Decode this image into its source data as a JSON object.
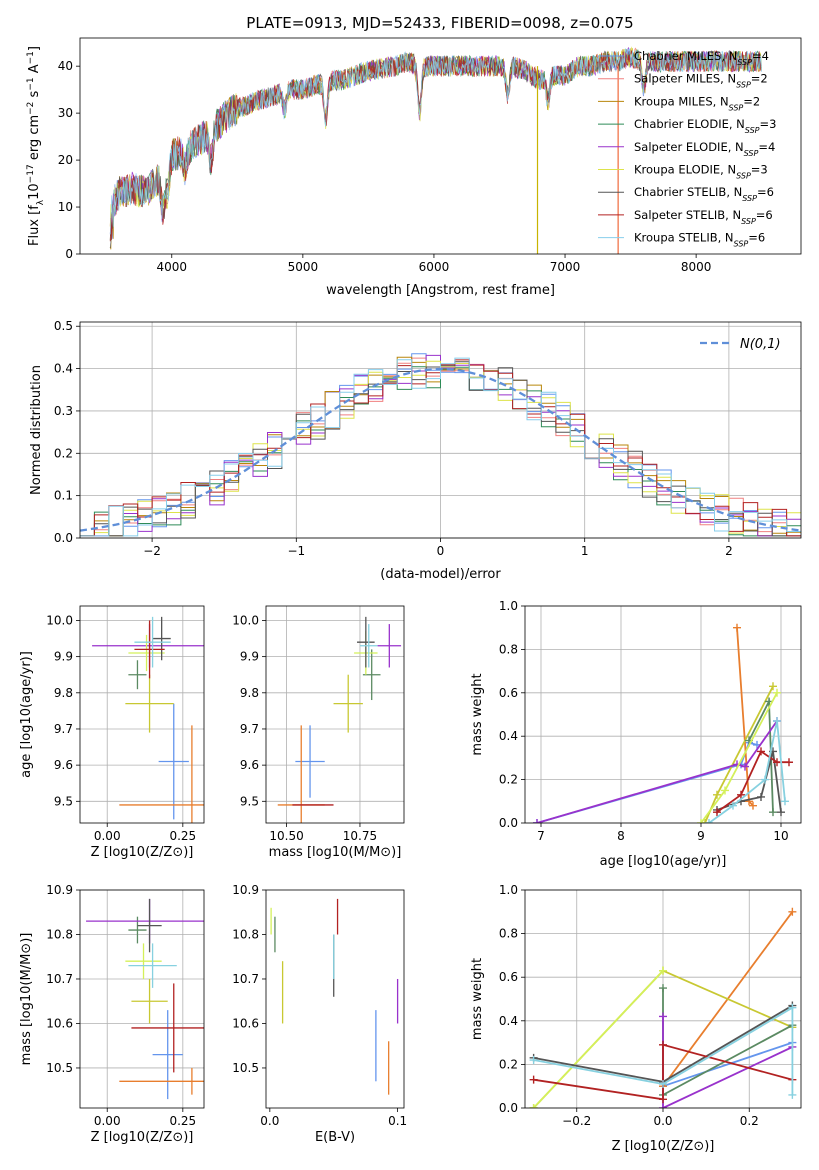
{
  "figure_title": "PLATE=0913, MJD=52433, FIBERID=0098, z=0.075",
  "colors": {
    "series": [
      "#6495ed",
      "#f08080",
      "#b8860b",
      "#2e8b57",
      "#9932cc",
      "#dde34a",
      "#555555",
      "#b22222",
      "#87ceeb"
    ],
    "pos_series": [
      "#6495ed",
      "#e87e2e",
      "#c8c832",
      "#5b8a62",
      "#9932cc",
      "#d4f05a",
      "#555555",
      "#b22222",
      "#87d1e0"
    ],
    "normal_curve": "#5f8fd8",
    "grid": "#b0b0b0"
  },
  "chart_data": [
    {
      "type": "line",
      "panel": "spectrum",
      "title": "PLATE=0913, MJD=52433, FIBERID=0098, z=0.075",
      "xlabel": "wavelength [Angstrom, rest frame]",
      "ylabel": "Flux [f_λ10^-17 erg cm^-2 s^-1 A^-1]",
      "xlim": [
        3300,
        8800
      ],
      "ylim": [
        0,
        46
      ],
      "xticks": [
        4000,
        5000,
        6000,
        7000,
        8000
      ],
      "yticks": [
        0,
        10,
        20,
        30,
        40
      ],
      "grid": false,
      "legend_position": "right",
      "series": [
        {
          "name": "Chabrier MILES, N_SSP=4"
        },
        {
          "name": "Salpeter MILES, N_SSP=2"
        },
        {
          "name": "Kroupa MILES, N_SSP=2"
        },
        {
          "name": "Chabrier ELODIE, N_SSP=3"
        },
        {
          "name": "Salpeter ELODIE, N_SSP=4"
        },
        {
          "name": "Kroupa ELODIE, N_SSP=3"
        },
        {
          "name": "Chabrier STELIB, N_SSP=6"
        },
        {
          "name": "Salpeter STELIB, N_SSP=6"
        },
        {
          "name": "Kroupa STELIB, N_SSP=6"
        }
      ],
      "continuum": [
        [
          3530,
          10
        ],
        [
          3600,
          13
        ],
        [
          3700,
          14
        ],
        [
          3800,
          13
        ],
        [
          3900,
          16
        ],
        [
          4000,
          21
        ],
        [
          4100,
          22
        ],
        [
          4200,
          24
        ],
        [
          4300,
          26
        ],
        [
          4400,
          29
        ],
        [
          4500,
          31
        ],
        [
          4600,
          32
        ],
        [
          4700,
          33
        ],
        [
          4800,
          34
        ],
        [
          4900,
          35
        ],
        [
          5000,
          35
        ],
        [
          5100,
          36
        ],
        [
          5200,
          37
        ],
        [
          5300,
          37
        ],
        [
          5400,
          38
        ],
        [
          5500,
          39
        ],
        [
          5600,
          39.5
        ],
        [
          5700,
          40
        ],
        [
          5800,
          41
        ],
        [
          5900,
          40
        ],
        [
          6000,
          40
        ],
        [
          6100,
          40
        ],
        [
          6200,
          40
        ],
        [
          6300,
          40
        ],
        [
          6400,
          40
        ],
        [
          6500,
          40
        ],
        [
          6600,
          40
        ],
        [
          6700,
          39
        ],
        [
          6800,
          37
        ],
        [
          6900,
          38
        ],
        [
          7000,
          38
        ],
        [
          7100,
          40
        ],
        [
          7200,
          40
        ],
        [
          7300,
          41
        ],
        [
          7400,
          41
        ],
        [
          7500,
          42
        ],
        [
          7600,
          41
        ],
        [
          7700,
          41
        ],
        [
          7800,
          41
        ],
        [
          7900,
          41
        ],
        [
          8000,
          41
        ],
        [
          8100,
          41
        ],
        [
          8200,
          41
        ],
        [
          8300,
          41
        ],
        [
          8400,
          41
        ],
        [
          8500,
          41
        ]
      ],
      "spikes": [
        {
          "x": 6790,
          "y_low": 0,
          "y_high": 40
        },
        {
          "x": 7405,
          "y_low": 0,
          "y_high": 40
        }
      ]
    },
    {
      "type": "histogram",
      "panel": "residuals",
      "xlabel": "(data-model)/error",
      "ylabel": "Normed distribution",
      "xlim": [
        -2.5,
        2.5
      ],
      "ylim": [
        0,
        0.51
      ],
      "xticks": [
        -2,
        -1,
        0,
        1,
        2
      ],
      "yticks": [
        0.0,
        0.1,
        0.2,
        0.3,
        0.4,
        0.5
      ],
      "grid": true,
      "legend_position": "top-right",
      "legend_label": "N(0,1)",
      "bin_width": 0.1
    },
    {
      "type": "scatter",
      "panel": "age_vs_Z",
      "xlabel": "Z [log10(Z/Z⊙)]",
      "ylabel": "age [log10(age/yr)]",
      "xlim": [
        -0.09,
        0.32
      ],
      "ylim": [
        9.44,
        10.04
      ],
      "xticks": [
        0.0,
        0.25
      ],
      "yticks": [
        9.5,
        9.6,
        9.7,
        9.8,
        9.9,
        10.0
      ],
      "grid": true,
      "points": [
        {
          "x": 0.22,
          "y": 9.61,
          "xerr": 0.05,
          "yerr": 0.16
        },
        {
          "x": 0.28,
          "y": 9.49,
          "xerr": 0.24,
          "yerr": 0.22
        },
        {
          "x": 0.14,
          "y": 9.77,
          "xerr": 0.08,
          "yerr": 0.08
        },
        {
          "x": 0.1,
          "y": 9.85,
          "xerr": 0.03,
          "yerr": 0.04
        },
        {
          "x": 0.14,
          "y": 9.93,
          "xerr": 0.19,
          "yerr": 0.06
        },
        {
          "x": 0.13,
          "y": 9.91,
          "xerr": 0.06,
          "yerr": 0.05
        },
        {
          "x": 0.18,
          "y": 9.95,
          "xerr": 0.03,
          "yerr": 0.06
        },
        {
          "x": 0.14,
          "y": 9.92,
          "xerr": 0.05,
          "yerr": 0.08
        },
        {
          "x": 0.15,
          "y": 9.94,
          "xerr": 0.06,
          "yerr": 0.07
        }
      ]
    },
    {
      "type": "scatter",
      "panel": "age_vs_mass",
      "xlabel": "mass [log10(M/M⊙)]",
      "ylabel": "",
      "xlim": [
        10.43,
        10.9
      ],
      "ylim": [
        9.44,
        10.04
      ],
      "xticks": [
        10.5,
        10.75
      ],
      "yticks": [
        9.5,
        9.6,
        9.7,
        9.8,
        9.9,
        10.0
      ],
      "grid": true,
      "points": [
        {
          "x": 10.58,
          "y": 9.61,
          "xerr": 0.05,
          "yerr": 0.1
        },
        {
          "x": 10.55,
          "y": 9.49,
          "xerr": 0.08,
          "yerr": 0.22
        },
        {
          "x": 10.71,
          "y": 9.77,
          "xerr": 0.05,
          "yerr": 0.08
        },
        {
          "x": 10.79,
          "y": 9.85,
          "xerr": 0.03,
          "yerr": 0.07
        },
        {
          "x": 10.85,
          "y": 9.93,
          "xerr": 0.04,
          "yerr": 0.06
        },
        {
          "x": 10.77,
          "y": 9.91,
          "xerr": 0.04,
          "yerr": 0.06
        },
        {
          "x": 10.77,
          "y": 9.94,
          "xerr": 0.03,
          "yerr": 0.07
        },
        {
          "x": 10.59,
          "y": 9.49,
          "xerr": 0.07,
          "yerr": 0.0
        },
        {
          "x": 10.78,
          "y": 9.93,
          "xerr": 0.03,
          "yerr": 0.06
        }
      ]
    },
    {
      "type": "line",
      "panel": "weight_vs_age",
      "xlabel": "age [log10(age/yr)]",
      "ylabel": "mass weight",
      "xlim": [
        6.8,
        10.25
      ],
      "ylim": [
        0,
        1
      ],
      "xticks": [
        7,
        8,
        9,
        10
      ],
      "yticks": [
        0.0,
        0.2,
        0.4,
        0.6,
        0.8,
        1.0
      ],
      "grid": true,
      "series": [
        {
          "points": [
            [
              6.95,
              0.0
            ],
            [
              9.5,
              0.27
            ],
            [
              9.6,
              0.37
            ],
            [
              9.7,
              0.36
            ]
          ]
        },
        {
          "points": [
            [
              9.45,
              0.9
            ],
            [
              9.6,
              0.1
            ],
            [
              9.65,
              0.08
            ]
          ]
        },
        {
          "points": [
            [
              9.05,
              0.0
            ],
            [
              9.2,
              0.13
            ],
            [
              9.9,
              0.63
            ]
          ]
        },
        {
          "points": [
            [
              9.6,
              0.38
            ],
            [
              9.85,
              0.56
            ],
            [
              9.9,
              0.05
            ]
          ]
        },
        {
          "points": [
            [
              6.95,
              0.0
            ],
            [
              9.45,
              0.27
            ],
            [
              9.55,
              0.26
            ],
            [
              9.95,
              0.47
            ]
          ]
        },
        {
          "points": [
            [
              9.0,
              0.0
            ],
            [
              9.3,
              0.15
            ],
            [
              9.95,
              0.6
            ]
          ]
        },
        {
          "points": [
            [
              9.2,
              0.06
            ],
            [
              9.5,
              0.1
            ],
            [
              9.75,
              0.12
            ],
            [
              9.9,
              0.33
            ],
            [
              10.0,
              0.05
            ]
          ]
        },
        {
          "points": [
            [
              9.2,
              0.05
            ],
            [
              9.5,
              0.13
            ],
            [
              9.75,
              0.33
            ],
            [
              9.95,
              0.28
            ],
            [
              10.1,
              0.28
            ]
          ]
        },
        {
          "points": [
            [
              9.1,
              0.0
            ],
            [
              9.4,
              0.08
            ],
            [
              9.8,
              0.2
            ],
            [
              9.95,
              0.47
            ],
            [
              10.05,
              0.1
            ]
          ]
        }
      ]
    },
    {
      "type": "scatter",
      "panel": "mass_vs_Z",
      "xlabel": "Z [log10(Z/Z⊙)]",
      "ylabel": "mass [log10(M/M⊙)]",
      "xlim": [
        -0.09,
        0.32
      ],
      "ylim": [
        10.41,
        10.9
      ],
      "xticks": [
        0.0,
        0.25
      ],
      "yticks": [
        10.5,
        10.6,
        10.7,
        10.8,
        10.9
      ],
      "grid": true,
      "points": [
        {
          "x": 0.2,
          "y": 10.53,
          "xerr": 0.05,
          "yerr": 0.1
        },
        {
          "x": 0.28,
          "y": 10.47,
          "xerr": 0.24,
          "yerr": 0.03
        },
        {
          "x": 0.14,
          "y": 10.65,
          "xerr": 0.06,
          "yerr": 0.05
        },
        {
          "x": 0.1,
          "y": 10.81,
          "xerr": 0.03,
          "yerr": 0.03
        },
        {
          "x": 0.14,
          "y": 10.83,
          "xerr": 0.21,
          "yerr": 0.05
        },
        {
          "x": 0.12,
          "y": 10.74,
          "xerr": 0.06,
          "yerr": 0.04
        },
        {
          "x": 0.14,
          "y": 10.82,
          "xerr": 0.04,
          "yerr": 0.06
        },
        {
          "x": 0.22,
          "y": 10.59,
          "xerr": 0.14,
          "yerr": 0.1
        },
        {
          "x": 0.15,
          "y": 10.73,
          "xerr": 0.08,
          "yerr": 0.05
        }
      ]
    },
    {
      "type": "scatter",
      "panel": "mass_vs_EBV",
      "xlabel": "E(B-V)",
      "ylabel": "",
      "xlim": [
        -0.003,
        0.105
      ],
      "ylim": [
        10.41,
        10.9
      ],
      "xticks": [
        0.0,
        0.1
      ],
      "yticks": [
        10.5,
        10.6,
        10.7,
        10.8,
        10.9
      ],
      "grid": false,
      "points": [
        {
          "x": 0.083,
          "y": 10.55,
          "yerr": 0.08
        },
        {
          "x": 0.093,
          "y": 10.5,
          "yerr": 0.06
        },
        {
          "x": 0.01,
          "y": 10.67,
          "yerr": 0.07
        },
        {
          "x": 0.004,
          "y": 10.8,
          "yerr": 0.04
        },
        {
          "x": 0.1,
          "y": 10.65,
          "yerr": 0.05
        },
        {
          "x": 0.001,
          "y": 10.83,
          "yerr": 0.03
        },
        {
          "x": 0.05,
          "y": 10.73,
          "yerr": 0.07
        },
        {
          "x": 0.053,
          "y": 10.84,
          "yerr": 0.04
        },
        {
          "x": 0.05,
          "y": 10.75,
          "yerr": 0.05
        }
      ]
    },
    {
      "type": "line",
      "panel": "weight_vs_Z",
      "xlabel": "Z [log10(Z/Z⊙)]",
      "ylabel": "mass weight",
      "xlim": [
        -0.32,
        0.32
      ],
      "ylim": [
        0,
        1
      ],
      "xticks": [
        -0.2,
        0.0,
        0.2
      ],
      "yticks": [
        0.0,
        0.2,
        0.4,
        0.6,
        0.8,
        1.0
      ],
      "grid": true,
      "series": [
        {
          "points": [
            [
              0.0,
              0.1
            ],
            [
              0.3,
              0.3
            ]
          ]
        },
        {
          "points": [
            [
              0.0,
              0.1
            ],
            [
              0.3,
              0.9
            ]
          ]
        },
        {
          "points": [
            [
              -0.3,
              0.0
            ],
            [
              0.0,
              0.63
            ],
            [
              0.3,
              0.37
            ]
          ]
        },
        {
          "points": [
            [
              0.0,
              0.55
            ],
            [
              0.0,
              0.06
            ],
            [
              0.3,
              0.38
            ]
          ]
        },
        {
          "points": [
            [
              0.0,
              0.42
            ],
            [
              0.0,
              0.0
            ],
            [
              0.3,
              0.28
            ]
          ]
        },
        {
          "points": [
            [
              -0.3,
              0.0
            ],
            [
              0.0,
              0.63
            ]
          ]
        },
        {
          "points": [
            [
              -0.3,
              0.23
            ],
            [
              0.0,
              0.12
            ],
            [
              0.3,
              0.47
            ]
          ]
        },
        {
          "points": [
            [
              -0.3,
              0.13
            ],
            [
              0.0,
              0.04
            ],
            [
              0.0,
              0.29
            ],
            [
              0.3,
              0.13
            ]
          ]
        },
        {
          "points": [
            [
              -0.3,
              0.22
            ],
            [
              0.0,
              0.11
            ],
            [
              0.3,
              0.46
            ],
            [
              0.3,
              0.06
            ]
          ]
        }
      ]
    }
  ]
}
